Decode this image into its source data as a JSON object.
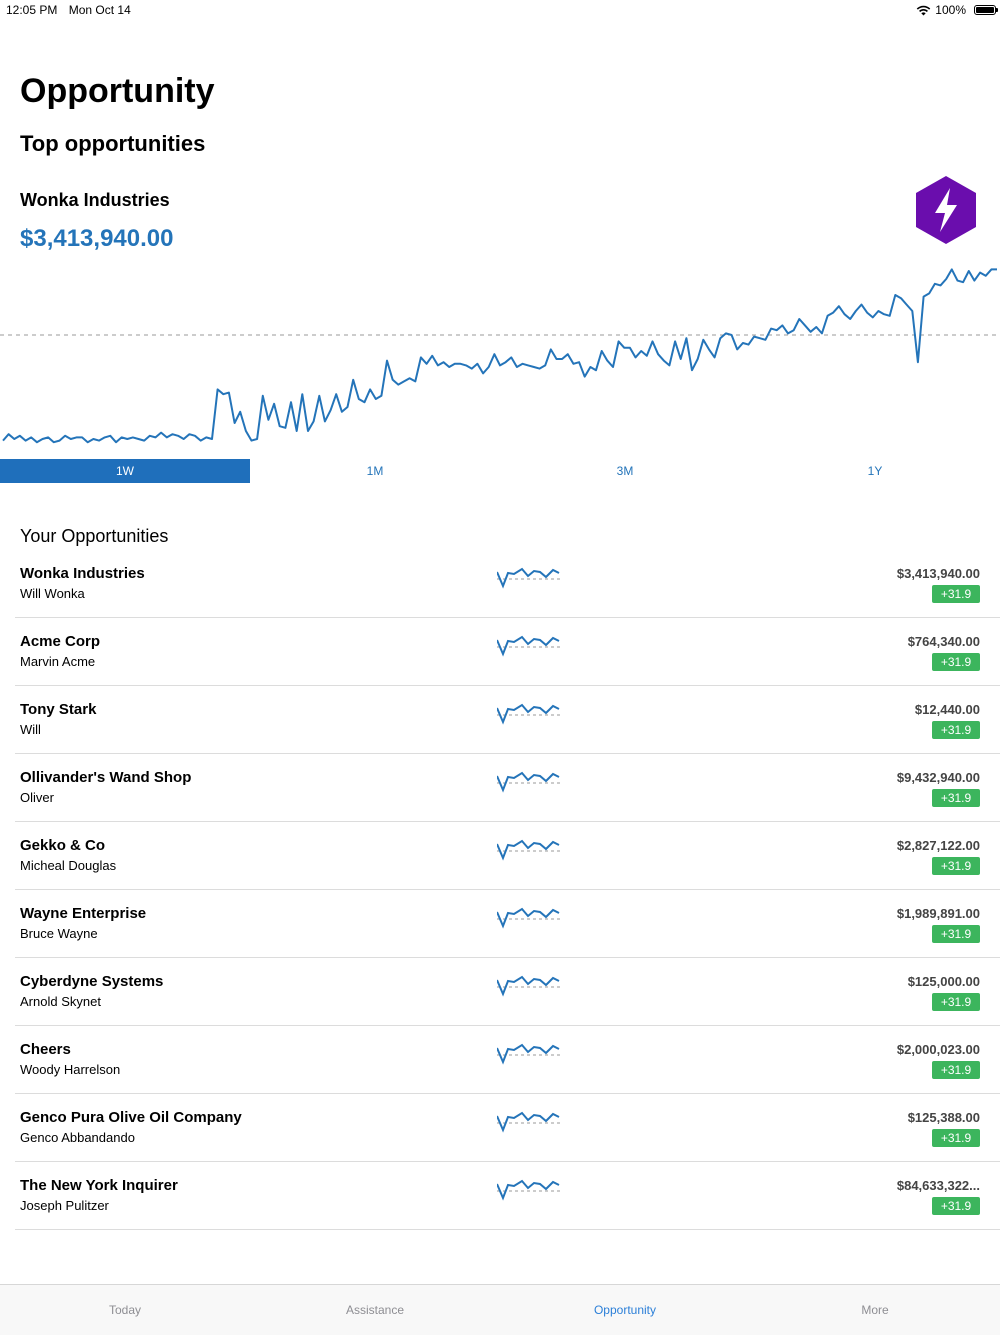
{
  "status_bar": {
    "time": "12:05 PM",
    "date": "Mon Oct 14",
    "battery": "100%",
    "wifi_icon": "wifi-icon",
    "battery_icon": "battery-icon"
  },
  "header": {
    "title": "Opportunity",
    "section_title": "Top opportunities"
  },
  "featured": {
    "name": "Wonka Industries",
    "value": "$3,413,940.00",
    "logo_icon": "lightning-hexagon-icon",
    "colors": {
      "accent": "#2474b9",
      "logo": "#6a0dad"
    }
  },
  "chart_data": {
    "type": "line",
    "values": [
      34,
      38,
      35,
      37,
      34,
      36,
      33,
      35,
      36,
      33,
      34,
      37,
      35,
      36,
      36,
      33,
      35,
      34,
      36,
      37,
      33,
      36,
      35,
      36,
      35,
      34,
      37,
      36,
      39,
      36,
      38,
      37,
      35,
      38,
      37,
      34,
      36,
      35,
      66,
      63,
      64,
      45,
      52,
      40,
      34,
      35,
      62,
      47,
      57,
      43,
      42,
      58,
      40,
      63,
      40,
      46,
      62,
      46,
      53,
      63,
      52,
      55,
      72,
      60,
      58,
      66,
      60,
      62,
      84,
      72,
      69,
      71,
      73,
      71,
      86,
      82,
      87,
      81,
      83,
      80,
      82,
      82,
      81,
      79,
      82,
      76,
      80,
      88,
      81,
      83,
      86,
      80,
      82,
      81,
      80,
      79,
      81,
      91,
      85,
      85,
      88,
      82,
      83,
      74,
      80,
      78,
      90,
      84,
      80,
      96,
      92,
      92,
      86,
      90,
      87,
      96,
      88,
      84,
      81,
      96,
      85,
      98,
      78,
      85,
      97,
      91,
      86,
      98,
      101,
      100,
      91,
      95,
      94,
      99,
      98,
      97,
      104,
      103,
      106,
      101,
      103,
      110,
      106,
      102,
      105,
      101,
      112,
      114,
      118,
      113,
      110,
      115,
      119,
      114,
      111,
      115,
      113,
      112,
      125,
      123,
      119,
      115,
      83,
      124,
      126,
      132,
      131,
      135,
      141,
      134,
      133,
      140,
      134,
      139,
      137,
      141,
      141
    ],
    "reference_line": 100,
    "ylim": [
      25,
      150
    ]
  },
  "range_tabs": [
    {
      "label": "1W",
      "active": true
    },
    {
      "label": "1M",
      "active": false
    },
    {
      "label": "3M",
      "active": false
    },
    {
      "label": "1Y",
      "active": false
    }
  ],
  "list": {
    "title": "Your Opportunities",
    "badge_color": "#3cb55d",
    "items": [
      {
        "name": "Wonka Industries",
        "contact": "Will Wonka",
        "amount": "$3,413,940.00",
        "change": "+31.9"
      },
      {
        "name": "Acme Corp",
        "contact": "Marvin Acme",
        "amount": "$764,340.00",
        "change": "+31.9"
      },
      {
        "name": "Tony Stark",
        "contact": "Will",
        "amount": "$12,440.00",
        "change": "+31.9"
      },
      {
        "name": "Ollivander's Wand Shop",
        "contact": "Oliver",
        "amount": "$9,432,940.00",
        "change": "+31.9"
      },
      {
        "name": "Gekko & Co",
        "contact": "Micheal Douglas",
        "amount": "$2,827,122.00",
        "change": "+31.9"
      },
      {
        "name": "Wayne Enterprise",
        "contact": "Bruce Wayne",
        "amount": "$1,989,891.00",
        "change": "+31.9"
      },
      {
        "name": "Cyberdyne Systems",
        "contact": "Arnold Skynet",
        "amount": "$125,000.00",
        "change": "+31.9"
      },
      {
        "name": "Cheers",
        "contact": "Woody Harrelson",
        "amount": "$2,000,023.00",
        "change": "+31.9"
      },
      {
        "name": "Genco Pura Olive Oil Company",
        "contact": "Genco Abbandando",
        "amount": "$125,388.00",
        "change": "+31.9"
      },
      {
        "name": "The New York Inquirer",
        "contact": "Joseph Pulitzer",
        "amount": "$84,633,322...",
        "change": "+31.9"
      }
    ]
  },
  "tab_bar": [
    {
      "label": "Today",
      "active": false
    },
    {
      "label": "Assistance",
      "active": false
    },
    {
      "label": "Opportunity",
      "active": true
    },
    {
      "label": "More",
      "active": false
    }
  ]
}
